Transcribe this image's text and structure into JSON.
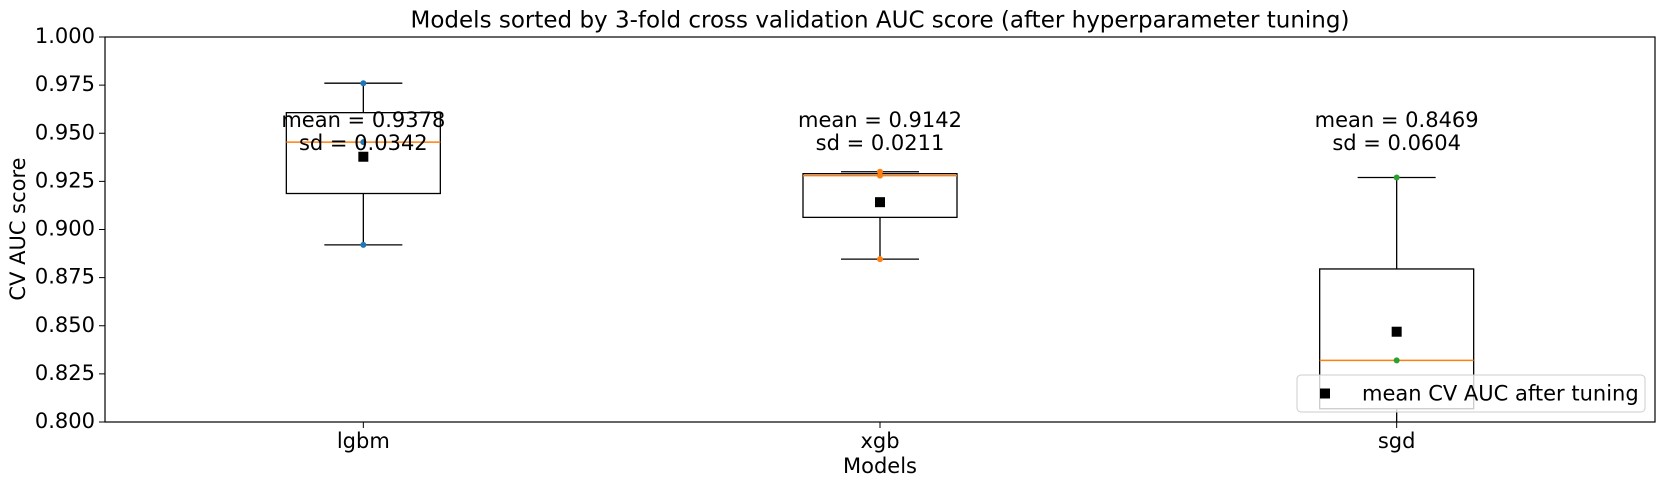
{
  "chart_data": {
    "type": "box",
    "title": "Models sorted by 3-fold cross validation AUC score (after hyperparameter tuning)",
    "x_label": "Models",
    "y_label": "CV AUC score",
    "categories": [
      "lgbm",
      "xgb",
      "sgd"
    ],
    "boxes": [
      {
        "low": 0.892,
        "q1": 0.9187,
        "median": 0.9454,
        "q3": 0.9607,
        "high": 0.976
      },
      {
        "low": 0.8846,
        "q1": 0.9063,
        "median": 0.928,
        "q3": 0.929,
        "high": 0.93
      },
      {
        "low": 0.7817,
        "q1": 0.8069,
        "median": 0.832,
        "q3": 0.8795,
        "high": 0.927
      }
    ],
    "points": [
      [
        0.976,
        0.892,
        0.9454
      ],
      [
        0.93,
        0.928,
        0.8846
      ],
      [
        0.927,
        0.832,
        0.7817
      ]
    ],
    "point_colors": [
      "#1f77b4",
      "#ff7f0e",
      "#2ca02c"
    ],
    "box_color": "#000000",
    "median_color": "#ff7f0e",
    "mean_series": {
      "name": "mean CV AUC after tuning",
      "color": "#000000",
      "values": [
        0.9378,
        0.9142,
        0.8469
      ]
    },
    "annotations": [
      [
        "mean = 0.9378",
        "sd = 0.0342"
      ],
      [
        "mean = 0.9142",
        "sd = 0.0211"
      ],
      [
        "mean = 0.8469",
        "sd = 0.0604"
      ]
    ],
    "ylim": [
      0.8,
      1.0
    ],
    "yticks": [
      {
        "value": 0.8,
        "label": "0.800"
      },
      {
        "value": 0.825,
        "label": "0.825"
      },
      {
        "value": 0.85,
        "label": "0.850"
      },
      {
        "value": 0.875,
        "label": "0.875"
      },
      {
        "value": 0.9,
        "label": "0.900"
      },
      {
        "value": 0.925,
        "label": "0.925"
      },
      {
        "value": 0.95,
        "label": "0.950"
      },
      {
        "value": 0.975,
        "label": "0.975"
      },
      {
        "value": 1.0,
        "label": "1.000"
      }
    ],
    "legend": "lower right"
  }
}
